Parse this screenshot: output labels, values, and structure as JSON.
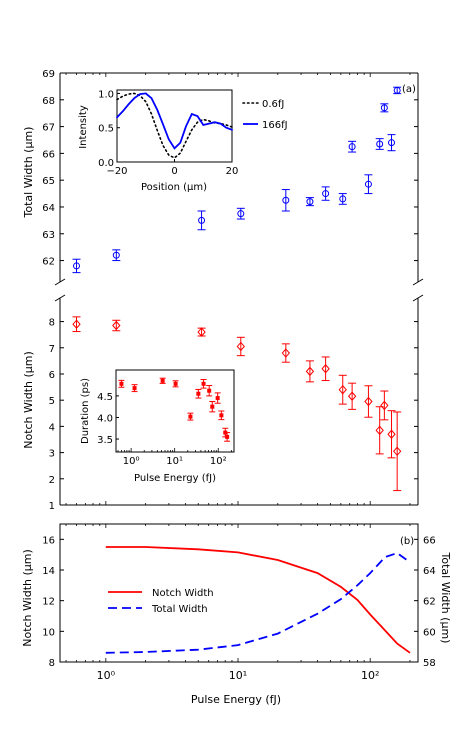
{
  "colors": {
    "blue": "#0000ff",
    "red": "#ff0000",
    "axis": "#000000"
  },
  "chart_data": [
    {
      "type": "scatter",
      "panel": "a-top",
      "label": "(a)",
      "ylabel": "Total Width (μm)",
      "xscale": "log",
      "xlim": [
        0.45,
        230
      ],
      "ylim": [
        61.2,
        69
      ],
      "yticks": [
        62,
        63,
        64,
        65,
        66,
        67,
        68,
        69
      ],
      "marker": "circle",
      "series": [
        {
          "color": "#0000ff",
          "points": [
            {
              "x": 0.6,
              "y": 61.8,
              "err": 0.25
            },
            {
              "x": 1.2,
              "y": 62.2,
              "err": 0.2
            },
            {
              "x": 5.3,
              "y": 63.5,
              "err": 0.35
            },
            {
              "x": 10.5,
              "y": 63.75,
              "err": 0.2
            },
            {
              "x": 23,
              "y": 64.25,
              "err": 0.4
            },
            {
              "x": 35,
              "y": 64.2,
              "err": 0.15
            },
            {
              "x": 46,
              "y": 64.5,
              "err": 0.25
            },
            {
              "x": 62,
              "y": 64.3,
              "err": 0.2
            },
            {
              "x": 73,
              "y": 66.25,
              "err": 0.2
            },
            {
              "x": 97,
              "y": 64.85,
              "err": 0.35
            },
            {
              "x": 118,
              "y": 66.35,
              "err": 0.2
            },
            {
              "x": 128,
              "y": 67.7,
              "err": 0.15
            },
            {
              "x": 145,
              "y": 66.4,
              "err": 0.3
            },
            {
              "x": 160,
              "y": 68.35,
              "err": 0.12
            }
          ]
        }
      ]
    },
    {
      "type": "line",
      "panel": "a-top-inset",
      "xlabel": "Position (μm)",
      "ylabel": "Intensity",
      "xlim": [
        -20,
        20
      ],
      "ylim": [
        0,
        1.05
      ],
      "xticks": [
        -20,
        0,
        20
      ],
      "yticks": [
        0.0,
        0.5,
        1.0
      ],
      "series": [
        {
          "name": "0.6fJ",
          "style": "dotted",
          "color": "#000000",
          "x": [
            -20,
            -18,
            -16,
            -14,
            -12,
            -10,
            -8,
            -6,
            -4,
            -2,
            0,
            2,
            4,
            6,
            8,
            10,
            12,
            14,
            16,
            18,
            20
          ],
          "y": [
            0.91,
            0.96,
            0.99,
            1.0,
            0.97,
            0.88,
            0.7,
            0.46,
            0.24,
            0.1,
            0.06,
            0.13,
            0.3,
            0.47,
            0.58,
            0.62,
            0.6,
            0.57,
            0.56,
            0.54,
            0.51
          ]
        },
        {
          "name": "166fJ",
          "style": "solid",
          "color": "#0000ff",
          "x": [
            -20,
            -18,
            -16,
            -14,
            -12,
            -10,
            -8,
            -6,
            -4,
            -2,
            0,
            2,
            4,
            6,
            8,
            10,
            12,
            14,
            16,
            18,
            20
          ],
          "y": [
            0.65,
            0.74,
            0.84,
            0.93,
            0.99,
            1.0,
            0.93,
            0.76,
            0.55,
            0.33,
            0.2,
            0.28,
            0.52,
            0.7,
            0.67,
            0.54,
            0.56,
            0.58,
            0.56,
            0.5,
            0.47
          ]
        }
      ]
    },
    {
      "type": "scatter",
      "panel": "a-bottom",
      "xlabel": "Pulse Energy (fJ)",
      "ylabel": "Notch Width (μm)",
      "xscale": "log",
      "xlim": [
        0.45,
        230
      ],
      "ylim": [
        1,
        8.9
      ],
      "yticks": [
        1,
        2,
        3,
        4,
        5,
        6,
        7,
        8
      ],
      "marker": "diamond",
      "series": [
        {
          "color": "#ff0000",
          "points": [
            {
              "x": 0.6,
              "y": 7.9,
              "err": 0.28
            },
            {
              "x": 1.2,
              "y": 7.85,
              "err": 0.2
            },
            {
              "x": 5.3,
              "y": 7.6,
              "err": 0.15
            },
            {
              "x": 10.5,
              "y": 7.05,
              "err": 0.35
            },
            {
              "x": 23,
              "y": 6.8,
              "err": 0.35
            },
            {
              "x": 35,
              "y": 6.1,
              "err": 0.4
            },
            {
              "x": 46,
              "y": 6.2,
              "err": 0.45
            },
            {
              "x": 62,
              "y": 5.4,
              "err": 0.55
            },
            {
              "x": 73,
              "y": 5.15,
              "err": 0.5
            },
            {
              "x": 97,
              "y": 4.95,
              "err": 0.6
            },
            {
              "x": 118,
              "y": 3.85,
              "err": 0.9
            },
            {
              "x": 128,
              "y": 4.8,
              "err": 0.55
            },
            {
              "x": 145,
              "y": 3.7,
              "err": 0.9
            },
            {
              "x": 160,
              "y": 3.05,
              "err": 1.5
            }
          ]
        }
      ]
    },
    {
      "type": "scatter",
      "panel": "a-bottom-inset",
      "xlabel": "Pulse Energy (fJ)",
      "ylabel": "Duration (ps)",
      "xscale": "log",
      "xlim": [
        0.45,
        230
      ],
      "ylim": [
        3.2,
        5.1
      ],
      "yticks": [
        3.5,
        4.0,
        4.5
      ],
      "xtick_labels": [
        "10⁰",
        "10¹",
        "10²"
      ],
      "series": [
        {
          "color": "#ff0000",
          "points": [
            {
              "x": 0.6,
              "y": 4.78,
              "err": 0.08
            },
            {
              "x": 1.2,
              "y": 4.68,
              "err": 0.08
            },
            {
              "x": 5.3,
              "y": 4.85,
              "err": 0.06
            },
            {
              "x": 10.5,
              "y": 4.78,
              "err": 0.07
            },
            {
              "x": 23,
              "y": 4.02,
              "err": 0.08
            },
            {
              "x": 35,
              "y": 4.55,
              "err": 0.1
            },
            {
              "x": 46,
              "y": 4.78,
              "err": 0.1
            },
            {
              "x": 62,
              "y": 4.62,
              "err": 0.12
            },
            {
              "x": 73,
              "y": 4.25,
              "err": 0.12
            },
            {
              "x": 97,
              "y": 4.45,
              "err": 0.12
            },
            {
              "x": 118,
              "y": 4.05,
              "err": 0.1
            },
            {
              "x": 145,
              "y": 3.65,
              "err": 0.1
            },
            {
              "x": 160,
              "y": 3.55,
              "err": 0.1
            }
          ]
        }
      ]
    },
    {
      "type": "line",
      "panel": "b",
      "label": "(b)",
      "xlabel": "Pulse Energy (fJ)",
      "ylabel_left": "Notch Width (μm)",
      "ylabel_right": "Total Width (μm)",
      "xscale": "log",
      "xlim": [
        0.45,
        230
      ],
      "xtick_labels": [
        "10⁰",
        "10¹",
        "10²"
      ],
      "ylim_left": [
        8,
        17
      ],
      "yticks_left": [
        8,
        10,
        12,
        14,
        16
      ],
      "ylim_right": [
        58,
        67
      ],
      "yticks_right": [
        58,
        60,
        62,
        64,
        66
      ],
      "legend": "center-left",
      "series": [
        {
          "name": "Notch Width",
          "axis": "left",
          "style": "solid",
          "color": "#ff0000",
          "x": [
            1,
            2,
            5,
            10,
            20,
            40,
            60,
            80,
            100,
            130,
            160,
            200
          ],
          "y": [
            15.5,
            15.5,
            15.35,
            15.15,
            14.65,
            13.8,
            12.9,
            12.05,
            11.1,
            10.05,
            9.2,
            8.6
          ]
        },
        {
          "name": "Total Width",
          "axis": "right",
          "style": "dashed",
          "color": "#0000ff",
          "x": [
            1,
            2,
            5,
            10,
            20,
            40,
            60,
            80,
            100,
            130,
            160,
            200
          ],
          "y": [
            58.6,
            58.65,
            58.8,
            59.1,
            59.85,
            61.15,
            62.1,
            63.0,
            63.8,
            64.85,
            65.1,
            64.5
          ]
        }
      ]
    }
  ]
}
